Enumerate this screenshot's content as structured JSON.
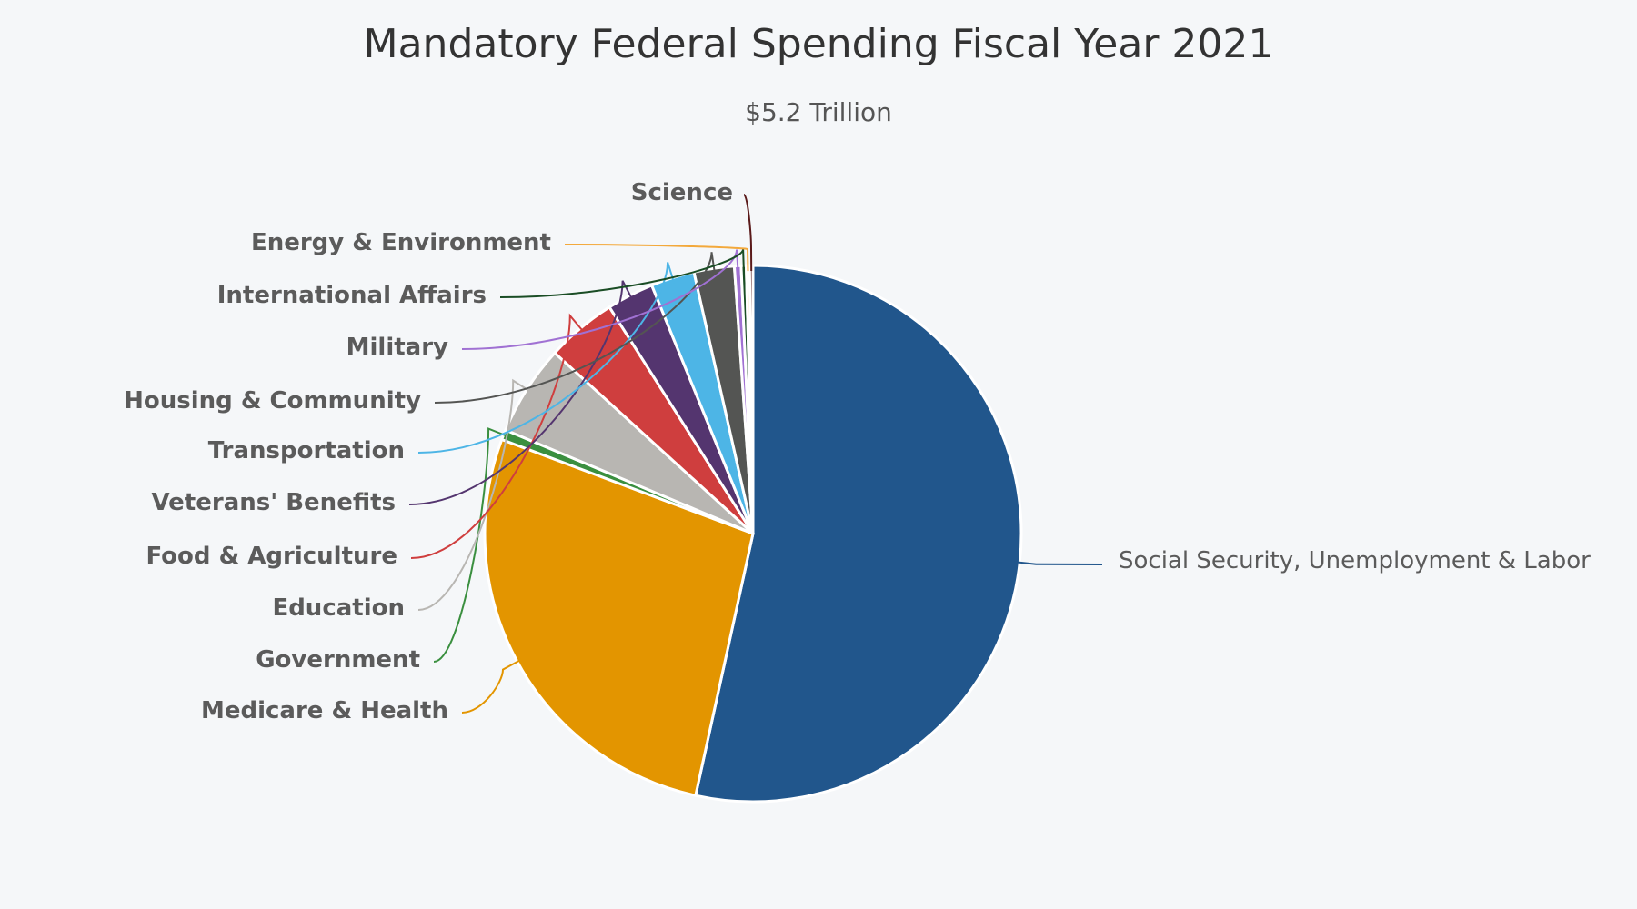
{
  "chart_data": {
    "type": "pie",
    "title": "Mandatory Federal Spending Fiscal Year 2021",
    "subtitle": "$5.2 Trillion",
    "start": "top, clockwise",
    "slices": [
      {
        "label": "Social Security, Unemployment & Labor",
        "value": 52.9,
        "color": "#21568c"
      },
      {
        "label": "Medicare & Health",
        "value": 27.0,
        "color": "#e39500"
      },
      {
        "label": "Government",
        "value": 0.6,
        "color": "#3a8f3f"
      },
      {
        "label": "Education",
        "value": 5.4,
        "color": "#b8b6b2"
      },
      {
        "label": "Food & Agriculture",
        "value": 4.2,
        "color": "#cf3e3e"
      },
      {
        "label": "Veterans' Benefits",
        "value": 2.8,
        "color": "#54356f"
      },
      {
        "label": "Transportation",
        "value": 2.6,
        "color": "#4db5e6"
      },
      {
        "label": "Housing & Community",
        "value": 2.4,
        "color": "#545553"
      },
      {
        "label": "Military",
        "value": 0.4,
        "color": "#a071d3"
      },
      {
        "label": "International Affairs",
        "value": 0.3,
        "color": "#1a4d25"
      },
      {
        "label": "Energy & Environment",
        "value": 0.2,
        "color": "#f3a93c"
      },
      {
        "label": "Science",
        "value": 0.2,
        "color": "#5a1a1a"
      }
    ]
  }
}
